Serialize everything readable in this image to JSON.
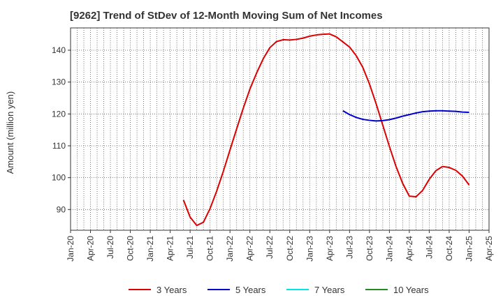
{
  "chart_data": {
    "type": "line",
    "title": "[9262]  Trend of StDev of 12-Month Moving Sum of Net Incomes",
    "ylabel": "Amount (million yen)",
    "xlabel": "",
    "x_ticks": [
      "Jan-20",
      "Apr-20",
      "Jul-20",
      "Oct-20",
      "Jan-21",
      "Apr-21",
      "Jul-21",
      "Oct-21",
      "Jan-22",
      "Apr-22",
      "Jul-22",
      "Oct-22",
      "Jan-23",
      "Apr-23",
      "Jul-23",
      "Oct-23",
      "Jan-24",
      "Apr-24",
      "Jul-24",
      "Oct-24",
      "Jan-25",
      "Apr-25"
    ],
    "y_ticks": [
      90,
      100,
      110,
      120,
      130,
      140
    ],
    "ylim": [
      83.5,
      147
    ],
    "grid": true,
    "legend_position": "bottom",
    "series": [
      {
        "name": "3 Years",
        "color": "#dd0000",
        "points": [
          [
            "2021-06",
            93.0
          ],
          [
            "2021-07",
            87.6
          ],
          [
            "2021-08",
            85.0
          ],
          [
            "2021-09",
            86.0
          ],
          [
            "2021-10",
            90.3
          ],
          [
            "2021-11",
            95.8
          ],
          [
            "2021-12",
            102.0
          ],
          [
            "2022-01",
            108.7
          ],
          [
            "2022-02",
            115.3
          ],
          [
            "2022-03",
            121.8
          ],
          [
            "2022-04",
            127.8
          ],
          [
            "2022-05",
            132.8
          ],
          [
            "2022-06",
            137.3
          ],
          [
            "2022-07",
            140.8
          ],
          [
            "2022-08",
            142.7
          ],
          [
            "2022-09",
            143.3
          ],
          [
            "2022-10",
            143.2
          ],
          [
            "2022-11",
            143.4
          ],
          [
            "2022-12",
            143.8
          ],
          [
            "2023-01",
            144.4
          ],
          [
            "2023-02",
            144.8
          ],
          [
            "2023-03",
            145.0
          ],
          [
            "2023-04",
            145.1
          ],
          [
            "2023-05",
            144.2
          ],
          [
            "2023-06",
            142.6
          ],
          [
            "2023-07",
            141.0
          ],
          [
            "2023-08",
            138.3
          ],
          [
            "2023-09",
            134.6
          ],
          [
            "2023-10",
            129.4
          ],
          [
            "2023-11",
            123.2
          ],
          [
            "2023-12",
            116.5
          ],
          [
            "2024-01",
            109.8
          ],
          [
            "2024-02",
            103.5
          ],
          [
            "2024-03",
            98.2
          ],
          [
            "2024-04",
            94.2
          ],
          [
            "2024-05",
            94.0
          ],
          [
            "2024-06",
            96.0
          ],
          [
            "2024-07",
            99.5
          ],
          [
            "2024-08",
            102.2
          ],
          [
            "2024-09",
            103.5
          ],
          [
            "2024-10",
            103.2
          ],
          [
            "2024-11",
            102.3
          ],
          [
            "2024-12",
            100.5
          ],
          [
            "2025-01",
            97.7
          ]
        ]
      },
      {
        "name": "5 Years",
        "color": "#0000cc",
        "points": [
          [
            "2023-06",
            121.0
          ],
          [
            "2023-07",
            119.8
          ],
          [
            "2023-08",
            118.9
          ],
          [
            "2023-09",
            118.3
          ],
          [
            "2023-10",
            118.0
          ],
          [
            "2023-11",
            117.8
          ],
          [
            "2023-12",
            117.9
          ],
          [
            "2024-01",
            118.2
          ],
          [
            "2024-02",
            118.7
          ],
          [
            "2024-03",
            119.3
          ],
          [
            "2024-04",
            119.8
          ],
          [
            "2024-05",
            120.3
          ],
          [
            "2024-06",
            120.7
          ],
          [
            "2024-07",
            120.9
          ],
          [
            "2024-08",
            121.0
          ],
          [
            "2024-09",
            121.0
          ],
          [
            "2024-10",
            120.9
          ],
          [
            "2024-11",
            120.8
          ],
          [
            "2024-12",
            120.6
          ],
          [
            "2025-01",
            120.5
          ]
        ]
      },
      {
        "name": "7 Years",
        "color": "#00e5e5",
        "points": []
      },
      {
        "name": "10 Years",
        "color": "#228b22",
        "points": []
      }
    ]
  }
}
